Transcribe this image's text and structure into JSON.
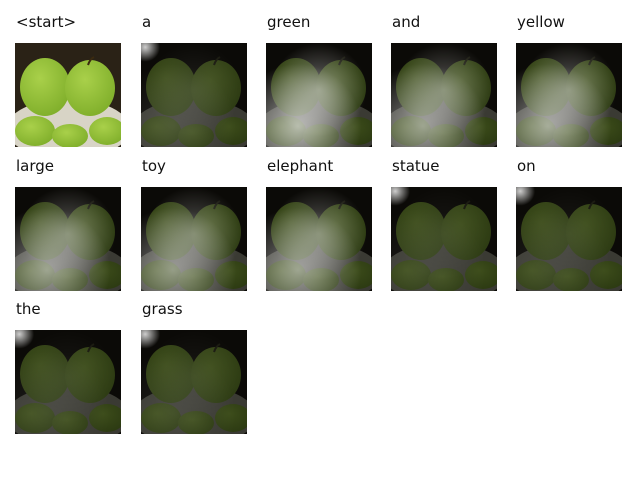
{
  "figure": {
    "rows": [
      [
        {
          "word": "<start>",
          "attention": 0.0,
          "original": true
        },
        {
          "word": "a",
          "attention": 0.15,
          "original": false
        },
        {
          "word": "green",
          "attention": 0.75,
          "original": false
        },
        {
          "word": "and",
          "attention": 0.6,
          "original": false
        },
        {
          "word": "yellow",
          "attention": 0.65,
          "original": false
        }
      ],
      [
        {
          "word": "large",
          "attention": 0.6,
          "original": false
        },
        {
          "word": "toy",
          "attention": 0.55,
          "original": false
        },
        {
          "word": "elephant",
          "attention": 0.6,
          "original": false
        },
        {
          "word": "statue",
          "attention": 0.1,
          "original": false
        },
        {
          "word": "on",
          "attention": 0.1,
          "original": false
        }
      ],
      [
        {
          "word": "the",
          "attention": 0.1,
          "original": false
        },
        {
          "word": "grass",
          "attention": 0.1,
          "original": false
        }
      ]
    ]
  }
}
